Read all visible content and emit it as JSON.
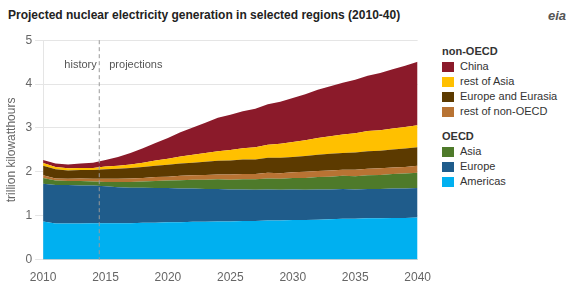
{
  "chart_data": {
    "type": "area",
    "stacked": true,
    "title": "Projected nuclear electricity generation in selected regions (2010-40)",
    "ylabel": "trillion kilowatthours",
    "x": [
      2010,
      2011,
      2012,
      2013,
      2014,
      2015,
      2016,
      2017,
      2018,
      2019,
      2020,
      2021,
      2022,
      2023,
      2024,
      2025,
      2026,
      2027,
      2028,
      2029,
      2030,
      2031,
      2032,
      2033,
      2034,
      2035,
      2036,
      2037,
      2038,
      2039,
      2040
    ],
    "xlim": [
      2010,
      2040
    ],
    "xticks": [
      2010,
      2015,
      2020,
      2025,
      2030,
      2035,
      2040
    ],
    "ylim": [
      0,
      5
    ],
    "yticks": [
      0,
      1,
      2,
      3,
      4,
      5
    ],
    "grid": "y",
    "series": [
      {
        "name": "Americas",
        "color": "#00b0f0",
        "values": [
          0.87,
          0.82,
          0.82,
          0.82,
          0.83,
          0.83,
          0.83,
          0.83,
          0.84,
          0.84,
          0.85,
          0.85,
          0.86,
          0.86,
          0.87,
          0.87,
          0.88,
          0.88,
          0.89,
          0.89,
          0.9,
          0.9,
          0.91,
          0.92,
          0.93,
          0.93,
          0.94,
          0.94,
          0.95,
          0.95,
          0.96
        ]
      },
      {
        "name": "Europe",
        "color": "#1f5c8b",
        "values": [
          0.86,
          0.88,
          0.88,
          0.87,
          0.86,
          0.84,
          0.82,
          0.81,
          0.8,
          0.79,
          0.78,
          0.77,
          0.76,
          0.75,
          0.74,
          0.73,
          0.72,
          0.71,
          0.71,
          0.7,
          0.7,
          0.69,
          0.69,
          0.68,
          0.68,
          0.67,
          0.67,
          0.67,
          0.67,
          0.67,
          0.67
        ]
      },
      {
        "name": "Asia",
        "color": "#4e7a2a",
        "values": [
          0.13,
          0.1,
          0.09,
          0.1,
          0.09,
          0.1,
          0.12,
          0.13,
          0.14,
          0.16,
          0.17,
          0.19,
          0.2,
          0.21,
          0.22,
          0.22,
          0.23,
          0.24,
          0.25,
          0.25,
          0.26,
          0.27,
          0.28,
          0.29,
          0.3,
          0.3,
          0.31,
          0.32,
          0.33,
          0.34,
          0.35
        ]
      },
      {
        "name": "rest of non-OECD",
        "color": "#b87333",
        "values": [
          0.06,
          0.05,
          0.05,
          0.06,
          0.06,
          0.07,
          0.07,
          0.08,
          0.08,
          0.09,
          0.09,
          0.1,
          0.1,
          0.11,
          0.11,
          0.12,
          0.12,
          0.12,
          0.13,
          0.13,
          0.13,
          0.14,
          0.14,
          0.14,
          0.14,
          0.15,
          0.15,
          0.15,
          0.15,
          0.15,
          0.16
        ]
      },
      {
        "name": "Europe and Eurasia",
        "color": "#5c3a00",
        "values": [
          0.22,
          0.21,
          0.19,
          0.19,
          0.2,
          0.22,
          0.23,
          0.24,
          0.25,
          0.26,
          0.27,
          0.28,
          0.29,
          0.3,
          0.31,
          0.32,
          0.33,
          0.33,
          0.34,
          0.35,
          0.35,
          0.36,
          0.37,
          0.38,
          0.38,
          0.39,
          0.4,
          0.4,
          0.41,
          0.42,
          0.42
        ]
      },
      {
        "name": "rest of Asia",
        "color": "#ffc000",
        "values": [
          0.06,
          0.05,
          0.05,
          0.05,
          0.05,
          0.06,
          0.07,
          0.08,
          0.1,
          0.12,
          0.14,
          0.16,
          0.18,
          0.2,
          0.22,
          0.24,
          0.26,
          0.28,
          0.3,
          0.32,
          0.34,
          0.36,
          0.38,
          0.4,
          0.42,
          0.44,
          0.46,
          0.47,
          0.48,
          0.49,
          0.5
        ]
      },
      {
        "name": "China",
        "color": "#8b1a2a",
        "values": [
          0.07,
          0.08,
          0.09,
          0.1,
          0.12,
          0.15,
          0.2,
          0.26,
          0.33,
          0.4,
          0.47,
          0.55,
          0.62,
          0.69,
          0.76,
          0.8,
          0.84,
          0.88,
          0.92,
          0.96,
          1.0,
          1.05,
          1.1,
          1.14,
          1.18,
          1.22,
          1.26,
          1.3,
          1.35,
          1.4,
          1.45
        ]
      }
    ],
    "legend_groups": [
      {
        "label": "non-OECD",
        "series": [
          "China",
          "rest of Asia",
          "Europe and Eurasia",
          "rest of non-OECD"
        ]
      },
      {
        "label": "OECD",
        "series": [
          "Asia",
          "Europe",
          "Americas"
        ]
      }
    ],
    "vertical_line": {
      "x": 2014.5,
      "line_style": "dashed"
    },
    "annotations": [
      {
        "text": "history",
        "x": 2013.0,
        "y": 4.55,
        "align": "center"
      },
      {
        "text": "projections",
        "x": 2015.3,
        "y": 4.55,
        "align": "left"
      }
    ],
    "logo": "eia"
  }
}
